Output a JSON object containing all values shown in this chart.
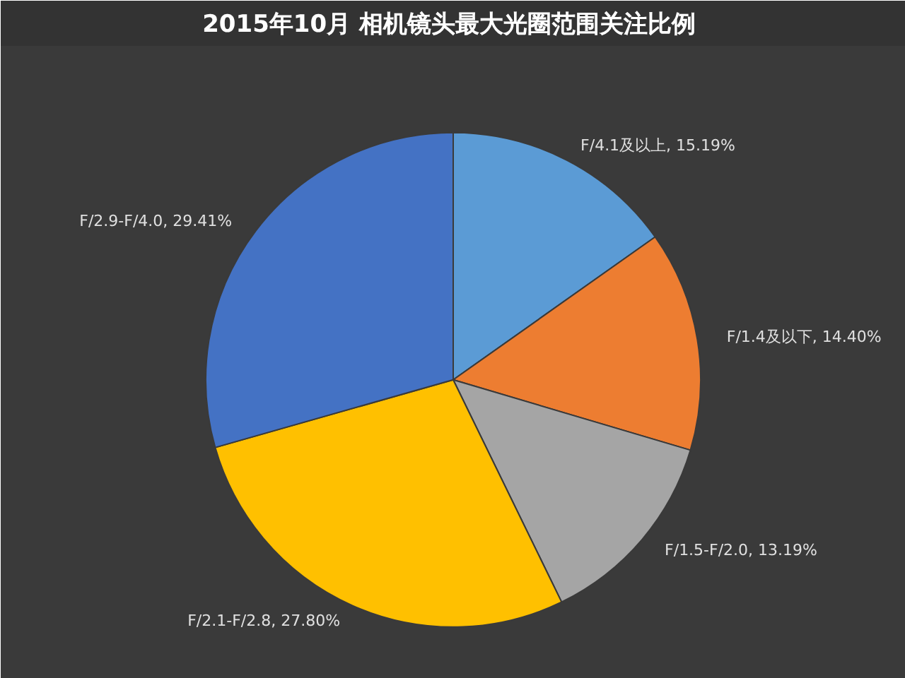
{
  "chart_data": {
    "type": "pie",
    "title": "2015年10月  相机镜头最大光圈范围关注比例",
    "categories": [
      "F/4.1及以上",
      "F/1.4及以下",
      "F/1.5-F/2.0",
      "F/2.1-F/2.8",
      "F/2.9-F/4.0"
    ],
    "values": [
      15.19,
      14.4,
      13.19,
      27.8,
      29.41
    ],
    "value_labels": [
      "15.19%",
      "14.40%",
      "13.19%",
      "27.80%",
      "29.41%"
    ],
    "colors": [
      "#5b9bd5",
      "#ed7d31",
      "#a5a5a5",
      "#ffc000",
      "#4472c4"
    ],
    "legend": false
  }
}
